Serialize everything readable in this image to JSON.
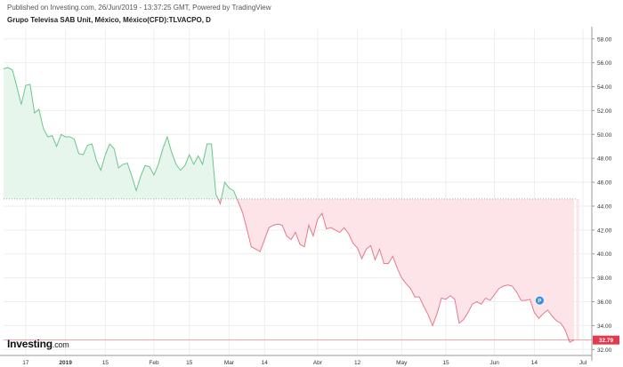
{
  "header": {
    "published": "Published on Investing.com, 26/Jun/2019 - 13:37:25 GMT, Powered by TradingView",
    "instrument": "Grupo Televisa SAB Unit, México, México(CFD):TLVACPO, D"
  },
  "logo": {
    "brand": "Investing",
    "suffix": ".com"
  },
  "colors": {
    "up_line": "#6cc58b",
    "up_fill": "#e7f6ec",
    "down_line": "#e57a8c",
    "down_fill": "#fde4e8",
    "last_price": "#e23a4f",
    "grid": "#eeeeee",
    "event_marker": "#2f8fe0"
  },
  "chart_data": {
    "type": "area",
    "baseline": 44.6,
    "last_price": 32.79,
    "last_price_label": "32.79",
    "event_marker": {
      "label": "P",
      "date_index": 120,
      "value": 36.1
    },
    "y_ticks": [
      32,
      34,
      36,
      38,
      40,
      42,
      44,
      46,
      48,
      50,
      52,
      54,
      56,
      58
    ],
    "y_tick_labels": [
      "32.00",
      "34.00",
      "36.00",
      "38.00",
      "40.00",
      "42.00",
      "44.00",
      "46.00",
      "48.00",
      "50.00",
      "52.00",
      "54.00",
      "56.00",
      "58.00"
    ],
    "ylim": [
      31.5,
      58.8
    ],
    "x_ticks": [
      {
        "label": "17",
        "index": 5
      },
      {
        "label": "2019",
        "index": 14,
        "bold": true
      },
      {
        "label": "15",
        "index": 23
      },
      {
        "label": "Feb",
        "index": 34
      },
      {
        "label": "15",
        "index": 42
      },
      {
        "label": "Mar",
        "index": 51
      },
      {
        "label": "14",
        "index": 59
      },
      {
        "label": "Abr",
        "index": 71
      },
      {
        "label": "12",
        "index": 80
      },
      {
        "label": "May",
        "index": 90
      },
      {
        "label": "15",
        "index": 100
      },
      {
        "label": "Jun",
        "index": 111
      },
      {
        "label": "14",
        "index": 120
      },
      {
        "label": "Jul",
        "index": 131
      }
    ],
    "xlim": [
      0,
      133
    ],
    "series": [
      {
        "values": [
          55.5,
          55.6,
          55.4,
          54,
          52.5,
          54.1,
          54.2,
          51.8,
          52.1,
          50.5,
          49.8,
          49.9,
          49,
          50,
          49.8,
          49.8,
          49.6,
          48.4,
          48.3,
          49.1,
          49.2,
          47.8,
          47,
          48.3,
          49.2,
          48.8,
          47.2,
          47.5,
          47.6,
          46.5,
          45.3,
          46.5,
          47.4,
          47.3,
          46.6,
          47.5,
          48.8,
          49.8,
          48.5,
          47.5,
          47,
          47.4,
          48.3,
          47.5,
          48.2,
          47.5,
          49.2,
          49.2,
          45,
          44.2,
          46,
          45.5,
          45.3,
          44.4,
          43.5,
          42.1,
          40.6,
          40.4,
          40.2,
          41.2,
          42.2,
          42.4,
          42.5,
          42.4,
          41.5,
          41.2,
          41.8,
          40.8,
          40.6,
          42.4,
          41.5,
          42.9,
          43.4,
          42.1,
          42.2,
          42,
          41.8,
          42.2,
          41.7,
          40.9,
          40.5,
          39.6,
          40.4,
          40.7,
          39.5,
          40.4,
          39.2,
          39.2,
          39.8,
          38.8,
          38,
          37.5,
          37.1,
          36.4,
          36.4,
          35.6,
          34.9,
          34,
          35,
          36.3,
          36.2,
          36.5,
          36.2,
          34.2,
          34.5,
          35.1,
          35.8,
          36,
          35.8,
          36.3,
          36.1,
          36.6,
          37.1,
          37.3,
          37.4,
          37.3,
          36.8,
          36.1,
          36.1,
          36.2,
          35.1,
          34.6,
          35,
          35.3,
          34.8,
          34.4,
          34.2,
          33.6,
          32.6,
          32.8
        ]
      }
    ]
  }
}
